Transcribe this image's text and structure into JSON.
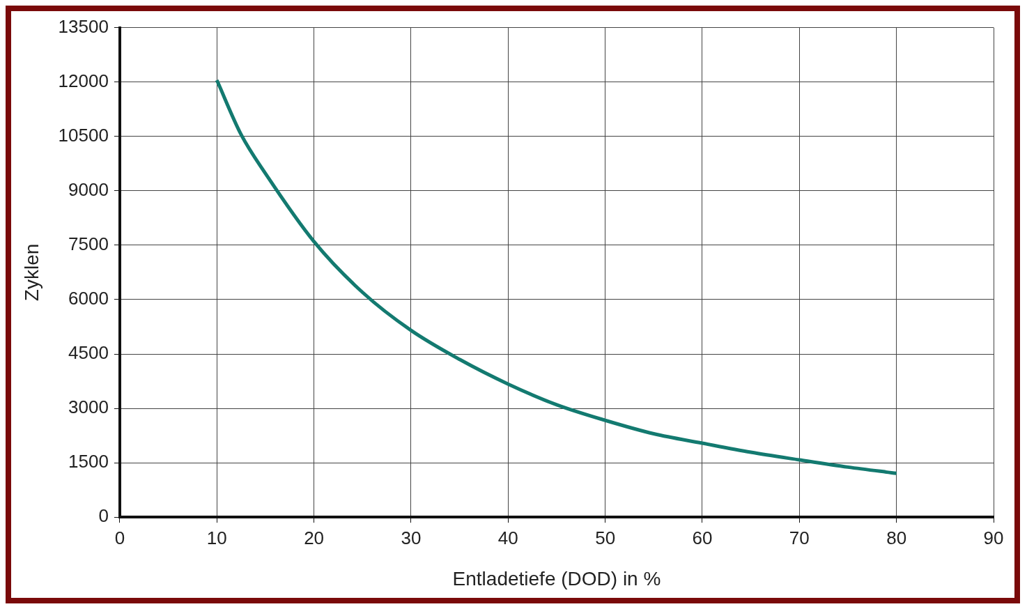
{
  "chart_data": {
    "type": "line",
    "xlabel": "Entladetiefe (DOD) in %",
    "ylabel": "Zyklen",
    "x": [
      10,
      12.5,
      15,
      20,
      25,
      30,
      35,
      40,
      45,
      50,
      55,
      60,
      65,
      70,
      75,
      80
    ],
    "series": [
      {
        "color": "#137a70",
        "values": [
          12050,
          10550,
          9480,
          7600,
          6200,
          5150,
          4350,
          3670,
          3100,
          2670,
          2300,
          2040,
          1790,
          1580,
          1380,
          1210
        ]
      }
    ],
    "xlim": [
      0,
      90
    ],
    "xticks": [
      0,
      10,
      20,
      30,
      40,
      50,
      60,
      70,
      80,
      90
    ],
    "ylim": [
      0,
      13500
    ],
    "yticks": [
      0,
      1500,
      3000,
      4500,
      6000,
      7500,
      9000,
      10500,
      12000,
      13500
    ],
    "grid": true,
    "legend": false,
    "marker": "none",
    "line_style": "solid"
  }
}
